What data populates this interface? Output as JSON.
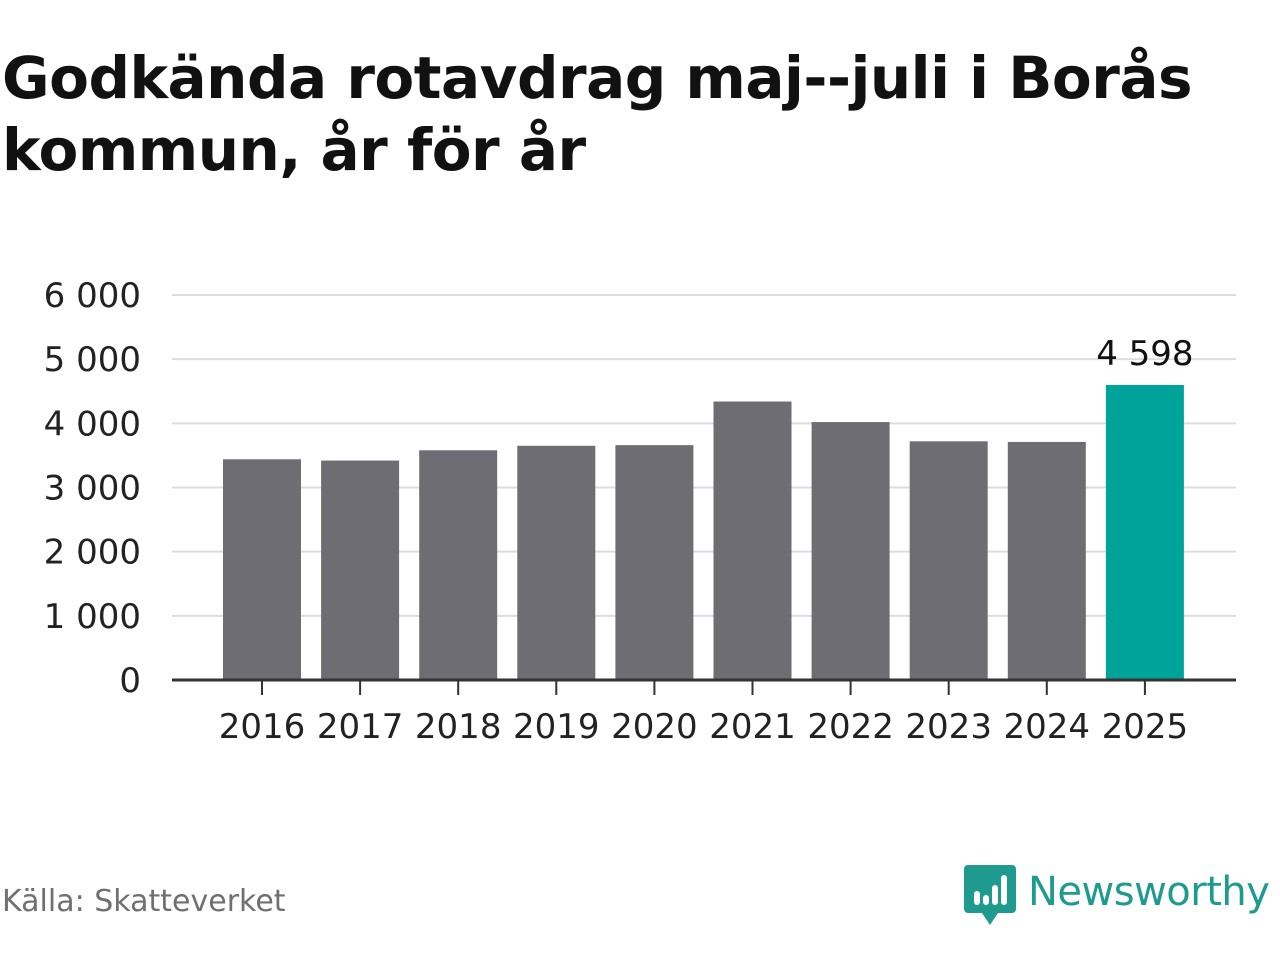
{
  "title": "Godkända rotavdrag maj--juli i Borås kommun, år för år",
  "source": "Källa: Skatteverket",
  "brand": {
    "name": "Newsworthy",
    "icon": "newsworthy-logo-icon",
    "color": "#1e9b8e"
  },
  "chart_data": {
    "type": "bar",
    "title": "Godkända rotavdrag maj--juli i Borås kommun, år för år",
    "xlabel": "",
    "ylabel": "",
    "categories": [
      "2016",
      "2017",
      "2018",
      "2019",
      "2020",
      "2021",
      "2022",
      "2023",
      "2024",
      "2025"
    ],
    "values": [
      3440,
      3420,
      3580,
      3650,
      3660,
      4340,
      4020,
      3720,
      3710,
      4598
    ],
    "ylim": [
      0,
      6000
    ],
    "yticks": [
      0,
      1000,
      2000,
      3000,
      4000,
      5000,
      6000
    ],
    "ytick_labels": [
      "0",
      "1 000",
      "2 000",
      "3 000",
      "4 000",
      "5 000",
      "6 000"
    ],
    "grid": true,
    "colors": {
      "default": "#6e6d73",
      "highlight": "#00a39a",
      "grid": "#dddddd",
      "axis": "#333333"
    },
    "highlight_index": 9,
    "annotations": [
      {
        "category": "2025",
        "text": "4 598"
      }
    ]
  }
}
